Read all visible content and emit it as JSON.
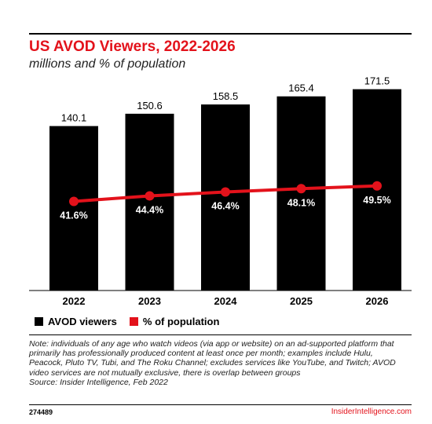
{
  "title": "US AVOD Viewers, 2022-2026",
  "subtitle": "millions and % of population",
  "legend": {
    "bars": "AVOD viewers",
    "line": "% of population"
  },
  "note": "Note: individuals of any age who watch videos (via app or website) on an ad-supported platform that primarily has professionally produced content at least once per month; examples include Hulu, Peacock, Pluto TV, Tubi, and The Roku Channel; excludes services like YouTube, and Twitch; AVOD video services are not mutually exclusive, there is overlap between groups",
  "source": "Source: Insider Intelligence, Feb 2022",
  "footer": {
    "id": "274489",
    "brand": "InsiderIntelligence.com"
  },
  "colors": {
    "bar": "#000000",
    "line": "#e3121b",
    "title": "#e3121b"
  },
  "chart_data": {
    "type": "bar",
    "categories": [
      "2022",
      "2023",
      "2024",
      "2025",
      "2026"
    ],
    "series": [
      {
        "name": "AVOD viewers",
        "type": "bar",
        "values": [
          140.1,
          150.6,
          158.5,
          165.4,
          171.5
        ],
        "labels": [
          "140.1",
          "150.6",
          "158.5",
          "165.4",
          "171.5"
        ]
      },
      {
        "name": "% of population",
        "type": "line",
        "values": [
          41.6,
          44.4,
          46.4,
          48.1,
          49.5
        ],
        "labels": [
          "41.6%",
          "44.4%",
          "46.4%",
          "48.1%",
          "49.5%"
        ]
      }
    ],
    "legend": "bottom-left",
    "grid": false
  }
}
